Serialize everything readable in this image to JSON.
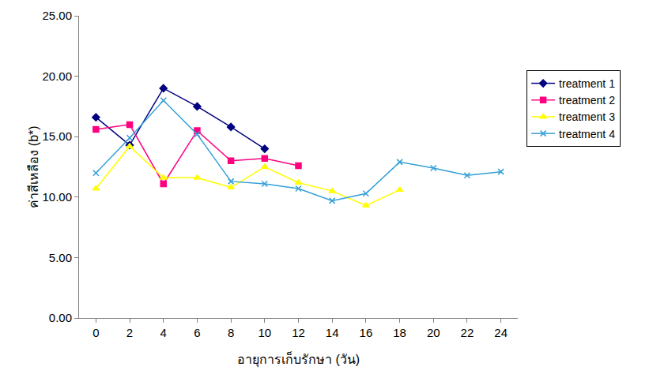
{
  "chart_data": {
    "type": "line",
    "x_label": "อายุการเก็บรักษา (วัน)",
    "y_label": "ค่าสีเหลือง (b*)",
    "xlim": [
      -1,
      25
    ],
    "xticks": [
      0,
      2,
      4,
      6,
      8,
      10,
      12,
      14,
      16,
      18,
      20,
      22,
      24
    ],
    "ylim": [
      0,
      25
    ],
    "yticks": [
      {
        "value": 0,
        "label": "0.00"
      },
      {
        "value": 5,
        "label": "5.00"
      },
      {
        "value": 10,
        "label": "10.00"
      },
      {
        "value": 15,
        "label": "15.00"
      },
      {
        "value": 20,
        "label": "20.00"
      },
      {
        "value": 25,
        "label": "25.00"
      }
    ],
    "grid": false,
    "legend": "right",
    "series": [
      {
        "name": "treatment 1",
        "color": "#000080",
        "marker": "diamond",
        "x": [
          0,
          2,
          4,
          6,
          8,
          10
        ],
        "values": [
          16.6,
          14.3,
          19.0,
          17.5,
          15.8,
          14.0
        ]
      },
      {
        "name": "treatment 2",
        "color": "#ff0080",
        "marker": "square",
        "x": [
          0,
          2,
          4,
          6,
          8,
          10,
          12
        ],
        "values": [
          15.6,
          16.0,
          11.1,
          15.5,
          13.0,
          13.2,
          12.6
        ]
      },
      {
        "name": "treatment 3",
        "color": "#ffff00",
        "marker": "triangle-up",
        "x": [
          0,
          2,
          4,
          6,
          8,
          10,
          12,
          14,
          16,
          18
        ],
        "values": [
          10.7,
          14.2,
          11.6,
          11.6,
          10.8,
          12.5,
          11.2,
          10.5,
          9.3,
          10.6
        ]
      },
      {
        "name": "treatment 4",
        "color": "#33a0d8",
        "marker": "x",
        "x": [
          0,
          2,
          4,
          6,
          8,
          10,
          12,
          14,
          16,
          18,
          20,
          22,
          24
        ],
        "values": [
          12.0,
          14.9,
          18.0,
          15.2,
          11.3,
          11.1,
          10.7,
          9.7,
          10.3,
          12.9,
          12.4,
          11.8,
          12.1
        ]
      }
    ]
  }
}
